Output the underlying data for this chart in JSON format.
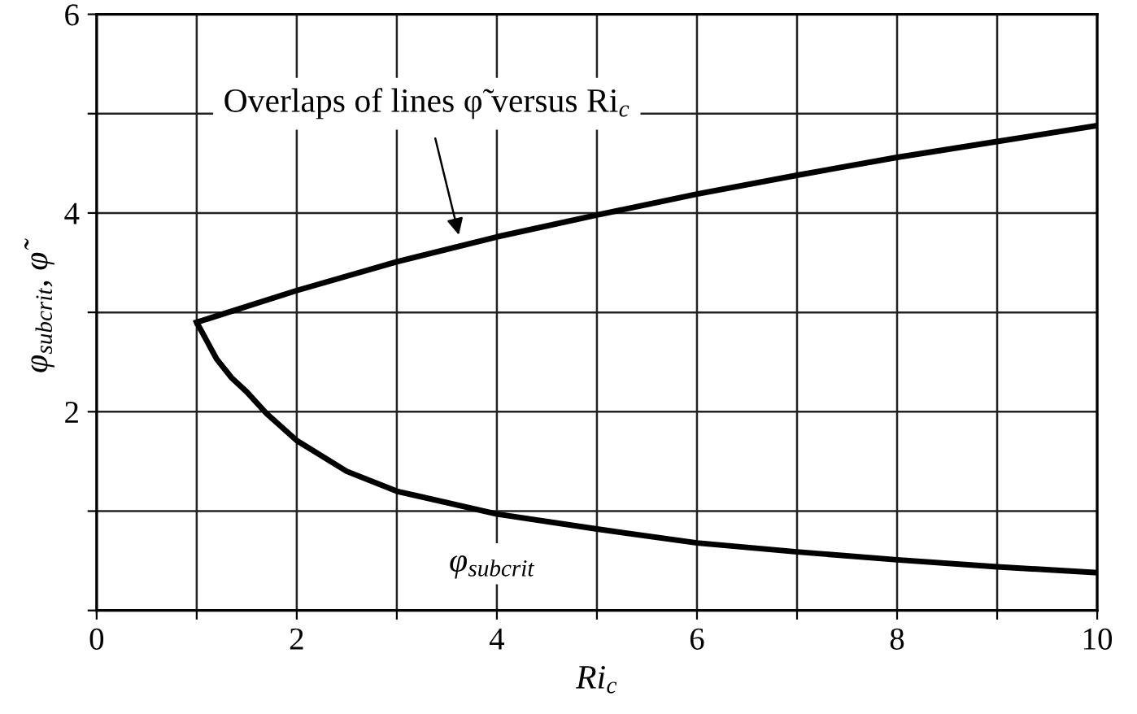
{
  "chart_data": {
    "type": "line",
    "xlabel": "Ri$_{c}$",
    "ylabel": "φ$_{subcrit}$, φ̃",
    "series": [
      {
        "color": "#000000",
        "x": [
          1,
          2,
          3,
          4,
          5,
          6,
          7,
          8,
          9,
          10
        ],
        "values": [
          2.9,
          3.22,
          3.51,
          3.76,
          3.98,
          4.19,
          4.38,
          4.56,
          4.72,
          4.88
        ]
      },
      {
        "color": "#000000",
        "x": [
          1,
          1.2,
          1.35,
          1.5,
          1.7,
          2,
          2.5,
          3,
          4,
          5,
          6,
          7,
          8,
          9,
          10
        ],
        "values": [
          2.9,
          2.53,
          2.34,
          2.2,
          1.98,
          1.71,
          1.4,
          1.2,
          0.97,
          0.82,
          0.68,
          0.59,
          0.51,
          0.44,
          0.38
        ]
      }
    ],
    "annotations": [
      "Overlaps of lines φ̃ versus Ri$_{c}$",
      {
        "text": "φ$_{subcrit}$",
        "x": 4,
        "y": 0.97
      }
    ],
    "xlim": [
      0,
      10
    ],
    "ylim": [
      0,
      6
    ],
    "xticks": [
      0,
      {
        "value": 1,
        "label": null
      },
      2,
      {
        "value": 3,
        "label": null
      },
      4,
      {
        "value": 5,
        "label": null
      },
      6,
      {
        "value": 7,
        "label": null
      },
      8,
      {
        "value": 9,
        "label": null
      },
      10
    ],
    "yticks": [
      {
        "value": 0,
        "label": null
      },
      {
        "value": 1,
        "label": null
      },
      2,
      {
        "value": 3,
        "label": null
      },
      4,
      {
        "value": 5,
        "label": null
      },
      6
    ],
    "grid": true,
    "legend": false,
    "marker": "none",
    "line_style": "solid"
  }
}
